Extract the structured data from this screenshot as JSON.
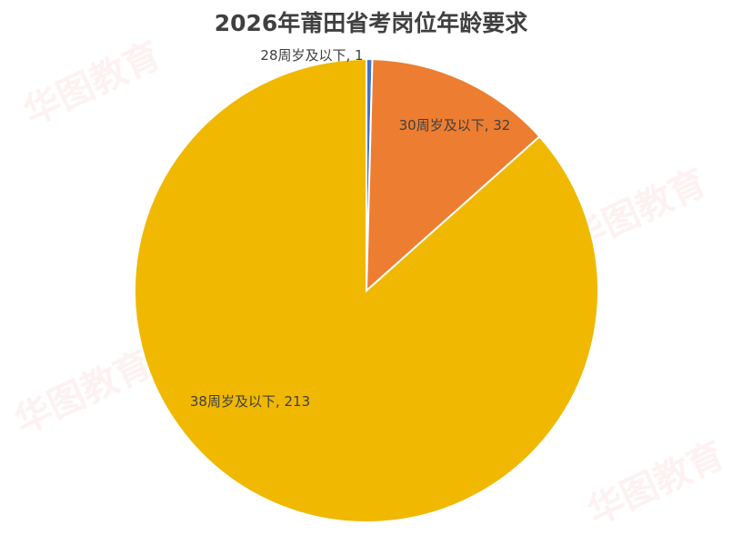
{
  "chart_data": {
    "type": "pie",
    "title": "2026年莆田省考岗位年龄要求",
    "start_angle": "top",
    "direction": "clockwise",
    "legend": "none",
    "slices": [
      {
        "label": "28周岁及以下",
        "value": 1,
        "color": "#4472C4",
        "data_label": "28周岁及以下, 1"
      },
      {
        "label": "30周岁及以下",
        "value": 32,
        "color": "#ED7D31",
        "data_label": "30周岁及以下, 32"
      },
      {
        "label": "38周岁及以下",
        "value": 213,
        "color": "#F0B800",
        "data_label": "38周岁及以下, 213"
      }
    ]
  },
  "watermark": "华图教育 HUATU.COM"
}
